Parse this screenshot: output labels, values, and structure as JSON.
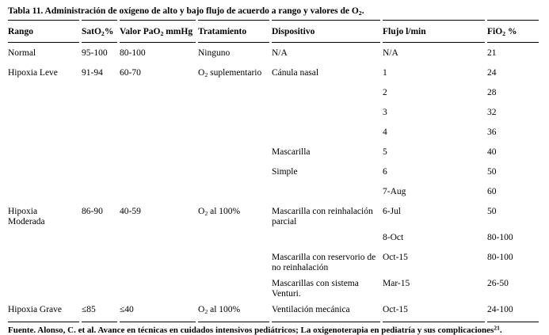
{
  "page": {
    "title": "Tabla 11. Administración de oxígeno de alto y bajo flujo de acuerdo a rango y valores de O~2~.",
    "source_note": "Fuente. Alonso, C. et al. Avance en técnicas en cuidados intensivos pediátricos; La oxigenoterapia en pediatría y sus complicaciones^21^."
  },
  "table": {
    "columns": [
      "Rango",
      "SatO~2~%",
      "Valor PaO~2~ mmHg",
      "Tratamiento",
      "Dispositivo",
      "Flujo l/min",
      "FiO~2~ %"
    ],
    "rows": [
      [
        "Normal",
        "95-100",
        "80-100",
        "Ninguno",
        "N/A",
        "N/A",
        "21"
      ],
      [
        "Hipoxia Leve",
        "91-94",
        "60-70",
        "O~2~ suplementario",
        "Cánula nasal",
        "1",
        "24"
      ],
      [
        "",
        "",
        "",
        "",
        "",
        "2",
        "28"
      ],
      [
        "",
        "",
        "",
        "",
        "",
        "3",
        "32"
      ],
      [
        "",
        "",
        "",
        "",
        "",
        "4",
        "36"
      ],
      [
        "",
        "",
        "",
        "",
        "Mascarilla",
        "5",
        "40"
      ],
      [
        "",
        "",
        "",
        "",
        "Simple",
        "6",
        "50"
      ],
      [
        "",
        "",
        "",
        "",
        "",
        "7-Aug",
        "60"
      ],
      [
        "Hipoxia Moderada",
        "86-90",
        "40-59",
        "O~2~ al 100%",
        "Mascarilla con reinhalación parcial",
        "6-Jul",
        "50"
      ],
      [
        "",
        "",
        "",
        "",
        "",
        "8-Oct",
        "80-100"
      ],
      [
        "",
        "",
        "",
        "",
        "Mascarilla con reservorio de no reinhalación",
        "Oct-15",
        "80-100"
      ],
      [
        "",
        "",
        "",
        "",
        "Mascarillas con sistema Venturi.",
        "Mar-15",
        "26-50"
      ],
      [
        "Hipoxia Grave",
        "≤85",
        "≤40",
        "O~2~ al 100%",
        "Ventilación mecánica",
        "Oct-15",
        "24-100"
      ]
    ]
  },
  "colors": {
    "background": "#ffffff",
    "text": "#000000",
    "rule": "#000000"
  }
}
